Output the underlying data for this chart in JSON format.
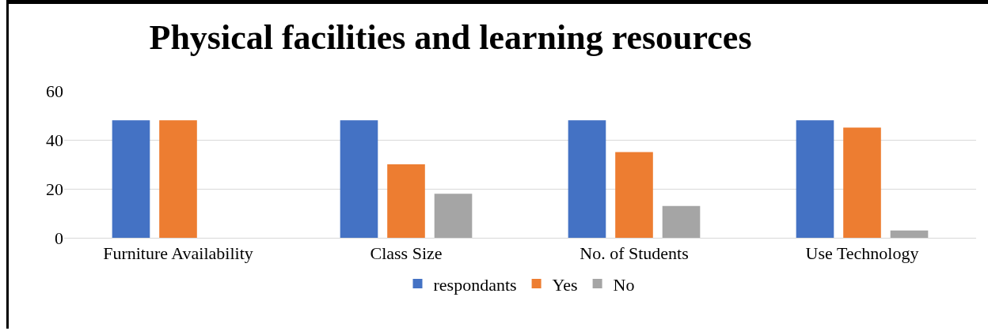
{
  "chart_data": {
    "type": "bar",
    "title": "Physical facilities and learning resources",
    "categories": [
      "Furniture Availability",
      "Class Size",
      "No. of Students",
      "Use Technology"
    ],
    "series": [
      {
        "name": "respondants",
        "color": "#4472c4",
        "values": [
          48,
          48,
          48,
          48
        ]
      },
      {
        "name": "Yes",
        "color": "#ed7d31",
        "values": [
          48,
          30,
          35,
          45
        ]
      },
      {
        "name": "No",
        "color": "#a5a5a5",
        "values": [
          0,
          18,
          13,
          3
        ]
      }
    ],
    "ylim": [
      0,
      60
    ],
    "yticks": [
      0,
      20,
      40,
      60
    ],
    "grid": "y",
    "legend": "bottom"
  }
}
